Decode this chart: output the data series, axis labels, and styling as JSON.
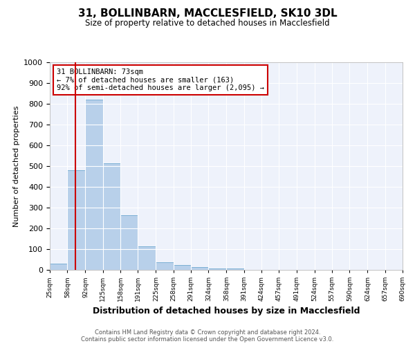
{
  "title1": "31, BOLLINBARN, MACCLESFIELD, SK10 3DL",
  "title2": "Size of property relative to detached houses in Macclesfield",
  "xlabel": "Distribution of detached houses by size in Macclesfield",
  "ylabel": "Number of detached properties",
  "footnote1": "Contains HM Land Registry data © Crown copyright and database right 2024.",
  "footnote2": "Contains public sector information licensed under the Open Government Licence v3.0.",
  "annotation_title": "31 BOLLINBARN: 73sqm",
  "annotation_line1": "← 7% of detached houses are smaller (163)",
  "annotation_line2": "92% of semi-detached houses are larger (2,095) →",
  "bar_edges": [
    25,
    58,
    92,
    125,
    158,
    191,
    225,
    258,
    291,
    324,
    358,
    391,
    424,
    457,
    491,
    524,
    557,
    590,
    624,
    657,
    690
  ],
  "bar_heights": [
    30,
    480,
    820,
    515,
    265,
    112,
    38,
    22,
    15,
    8,
    8,
    0,
    0,
    0,
    0,
    0,
    0,
    0,
    0,
    0
  ],
  "bar_color": "#b8d0ea",
  "bar_edge_color": "#7bafd4",
  "vline_x": 73,
  "vline_color": "#cc0000",
  "annotation_box_color": "#cc0000",
  "ylim": [
    0,
    1000
  ],
  "tick_labels": [
    "25sqm",
    "58sqm",
    "92sqm",
    "125sqm",
    "158sqm",
    "191sqm",
    "225sqm",
    "258sqm",
    "291sqm",
    "324sqm",
    "358sqm",
    "391sqm",
    "424sqm",
    "457sqm",
    "491sqm",
    "524sqm",
    "557sqm",
    "590sqm",
    "624sqm",
    "657sqm",
    "690sqm"
  ],
  "background_color": "#eef2fb"
}
